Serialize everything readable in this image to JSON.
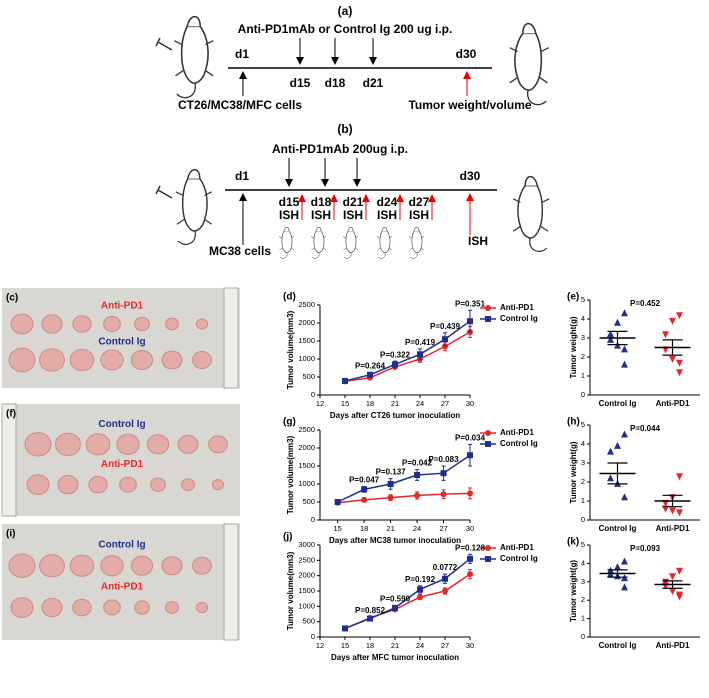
{
  "diagram_a": {
    "label": "(a)",
    "treatment": "Anti-PD1mAb or Control Ig 200 ug i.p.",
    "start_day": "d1",
    "injection_days": [
      "d15",
      "d18",
      "d21"
    ],
    "end_day": "d30",
    "start": "CT26/MC38/MFC cells",
    "end": "Tumor weight/volume"
  },
  "diagram_b": {
    "label": "(b)",
    "treatment": "Anti-PD1mAb 200ug i.p.",
    "start_day": "d1",
    "injection_days": [
      "d15",
      "d18",
      "d21",
      "d24",
      "d27"
    ],
    "end_day": "d30",
    "ish": "ISH",
    "start": "MC38 cells"
  },
  "photos": [
    {
      "label": "(c)",
      "top": "Anti-PD1",
      "bottom": "Control Ig"
    },
    {
      "label": "(f)",
      "top": "Control Ig",
      "bottom": "Anti-PD1"
    },
    {
      "label": "(i)",
      "top": "Control Ig",
      "bottom": "Anti-PD1"
    }
  ],
  "chart_data": [
    {
      "type": "line",
      "label": "(d)",
      "x": [
        15,
        18,
        21,
        24,
        27,
        30
      ],
      "xlim": [
        12,
        30
      ],
      "xticks": [
        12,
        15,
        18,
        21,
        24,
        27,
        30
      ],
      "ylim": [
        0,
        2500
      ],
      "yticks": [
        0,
        500,
        1000,
        1500,
        2000,
        2500
      ],
      "x_label": "Days after CT26 tumor inoculation",
      "y_label": "Tumor volume(mm3)",
      "p_values": [
        null,
        "P=0.264",
        "P=0.322",
        "P=0.419",
        "P=0.439",
        "P=0.351"
      ],
      "series": [
        {
          "name": "Anti-PD1",
          "color": "#e8262a",
          "marker": "circle",
          "values": [
            380,
            480,
            780,
            1000,
            1350,
            1750
          ],
          "errors": [
            20,
            40,
            60,
            90,
            120,
            150
          ]
        },
        {
          "name": "Control Ig",
          "color": "#1f2f8f",
          "marker": "square",
          "values": [
            390,
            560,
            850,
            1130,
            1550,
            2050
          ],
          "errors": [
            30,
            70,
            90,
            150,
            180,
            300
          ]
        }
      ]
    },
    {
      "type": "dot",
      "label": "(e)",
      "title": "P=0.452",
      "categories": [
        "Control Ig",
        "Anti-PD1"
      ],
      "ylim": [
        0,
        5
      ],
      "yticks": [
        0,
        1,
        2,
        3,
        4,
        5
      ],
      "y_label": "Tumor weight(g)",
      "groups": [
        {
          "color": "#1f2f8f",
          "marker": "triangle",
          "values": [
            4.3,
            3.8,
            3.2,
            2.9,
            2.6,
            2.4,
            1.6
          ],
          "mean": 3.0,
          "sem": 0.35
        },
        {
          "color": "#e8262a",
          "marker": "triangle-down",
          "values": [
            4.2,
            3.9,
            3.2,
            2.4,
            1.9,
            1.7,
            1.2
          ],
          "mean": 2.5,
          "sem": 0.4
        }
      ]
    },
    {
      "type": "line",
      "label": "(g)",
      "x": [
        15,
        18,
        21,
        24,
        27,
        30
      ],
      "xlim": [
        13,
        30
      ],
      "xticks": [
        15,
        18,
        21,
        24,
        27,
        30
      ],
      "ylim": [
        0,
        2500
      ],
      "yticks": [
        0,
        500,
        1000,
        1500,
        2000,
        2500
      ],
      "x_label": "Days after MC38 tumor inoculation",
      "y_label": "Tumor volume(mm3)",
      "p_values": [
        null,
        "P=0.047",
        "P=0.137",
        "P=0.042",
        "P=0.083",
        "P=0.034"
      ],
      "series": [
        {
          "name": "Anti-PD1",
          "color": "#e8262a",
          "marker": "circle",
          "values": [
            480,
            560,
            620,
            680,
            720,
            740
          ],
          "errors": [
            30,
            60,
            80,
            100,
            120,
            150
          ]
        },
        {
          "name": "Control Ig",
          "color": "#1f2f8f",
          "marker": "square",
          "values": [
            500,
            850,
            1000,
            1250,
            1300,
            1800
          ],
          "errors": [
            40,
            80,
            150,
            150,
            200,
            300
          ]
        }
      ]
    },
    {
      "type": "dot",
      "label": "(h)",
      "title": "P=0.044",
      "categories": [
        "Control Ig",
        "Anti-PD1"
      ],
      "ylim": [
        0,
        5
      ],
      "yticks": [
        0,
        1,
        2,
        3,
        4,
        5
      ],
      "y_label": "Tumor weight(g)",
      "groups": [
        {
          "color": "#1f2f8f",
          "marker": "triangle",
          "values": [
            4.5,
            3.9,
            3.6,
            2.2,
            1.9,
            1.2
          ],
          "mean": 2.45,
          "sem": 0.55
        },
        {
          "color": "#e8262a",
          "marker": "triangle-down",
          "values": [
            2.3,
            1.2,
            0.9,
            0.6,
            0.5,
            0.4
          ],
          "mean": 1.0,
          "sem": 0.3
        }
      ]
    },
    {
      "type": "line",
      "label": "(j)",
      "x": [
        15,
        18,
        21,
        24,
        27,
        30
      ],
      "xlim": [
        12,
        30
      ],
      "xticks": [
        12,
        15,
        18,
        21,
        24,
        27,
        30
      ],
      "ylim": [
        0,
        3000
      ],
      "yticks": [
        0,
        500,
        1000,
        1500,
        2000,
        2500,
        3000
      ],
      "x_label": "Days after MFC tumor inoculation",
      "y_label": "Tumor volume(mm3)",
      "p_values": [
        null,
        "P=0.852",
        "P=0.590",
        "P=0.192",
        "0.0772",
        "P=0.128"
      ],
      "series": [
        {
          "name": "Anti-PD1",
          "color": "#e8262a",
          "marker": "circle",
          "values": [
            280,
            620,
            900,
            1300,
            1500,
            2050
          ],
          "errors": [
            20,
            40,
            60,
            80,
            100,
            150
          ]
        },
        {
          "name": "Control Ig",
          "color": "#1f2f8f",
          "marker": "square",
          "values": [
            280,
            600,
            950,
            1550,
            1900,
            2550
          ],
          "errors": [
            20,
            50,
            80,
            120,
            150,
            150
          ]
        }
      ]
    },
    {
      "type": "dot",
      "label": "(k)",
      "title": "P=0.093",
      "categories": [
        "Control Ig",
        "Anti-PD1"
      ],
      "ylim": [
        0,
        5
      ],
      "yticks": [
        0,
        1,
        2,
        3,
        4,
        5
      ],
      "y_label": "Tumor weight(g)",
      "groups": [
        {
          "color": "#1f2f8f",
          "marker": "triangle",
          "values": [
            4.1,
            3.8,
            3.6,
            3.4,
            3.3,
            3.2,
            2.7
          ],
          "mean": 3.45,
          "sem": 0.2
        },
        {
          "color": "#e8262a",
          "marker": "triangle-down",
          "values": [
            3.6,
            3.3,
            3.0,
            2.8,
            2.5,
            2.3,
            2.2
          ],
          "mean": 2.85,
          "sem": 0.2
        }
      ]
    }
  ]
}
